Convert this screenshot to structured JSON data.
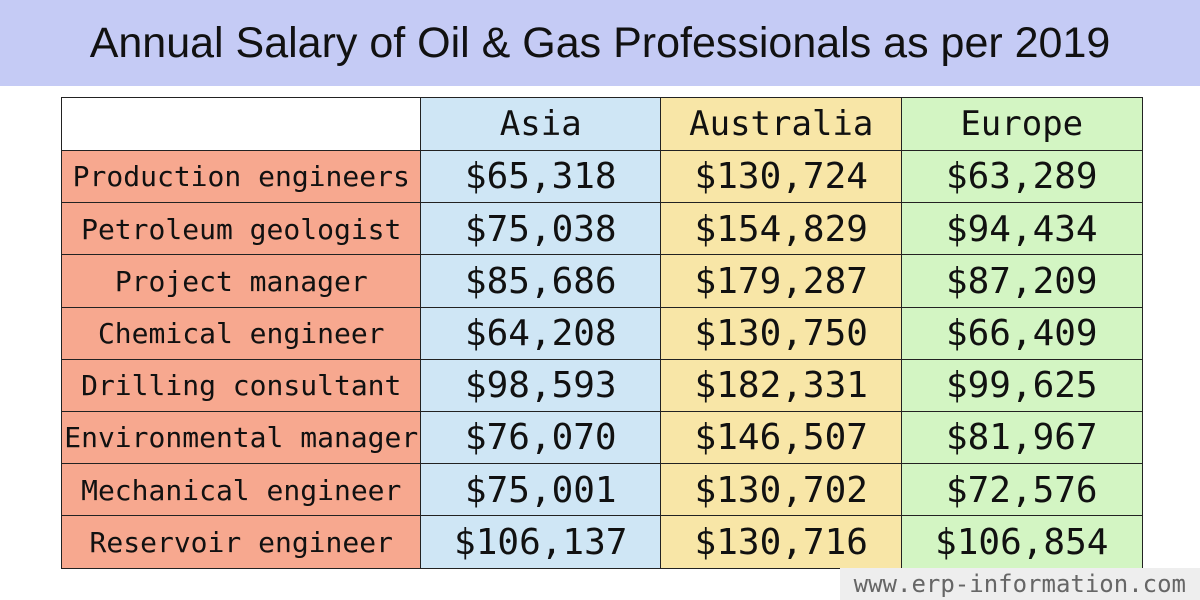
{
  "title": "Annual Salary of Oil & Gas Professionals as per 2019",
  "table": {
    "columns": [
      "Asia",
      "Australia",
      "Europe"
    ],
    "rows": [
      {
        "label": "Production engineers",
        "values": [
          "$65,318",
          "$130,724",
          "$63,289"
        ]
      },
      {
        "label": "Petroleum geologist",
        "values": [
          "$75,038",
          "$154,829",
          "$94,434"
        ]
      },
      {
        "label": "Project manager",
        "values": [
          "$85,686",
          "$179,287",
          "$87,209"
        ]
      },
      {
        "label": "Chemical engineer",
        "values": [
          "$64,208",
          "$130,750",
          "$66,409"
        ]
      },
      {
        "label": "Drilling consultant",
        "values": [
          "$98,593",
          "$182,331",
          "$99,625"
        ]
      },
      {
        "label": "Environmental manager",
        "values": [
          "$76,070",
          "$146,507",
          "$81,967"
        ]
      },
      {
        "label": "Mechanical engineer",
        "values": [
          "$75,001",
          "$130,702",
          "$72,576"
        ]
      },
      {
        "label": "Reservoir engineer",
        "values": [
          "$106,137",
          "$130,716",
          "$106,854"
        ]
      }
    ]
  },
  "footer": "www.erp-information.com"
}
